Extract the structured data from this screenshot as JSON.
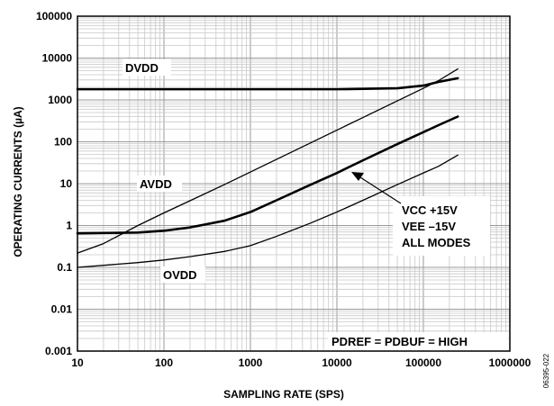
{
  "chart_data": {
    "type": "line",
    "xlabel": "SAMPLING RATE (SPS)",
    "ylabel": "OPERATING CURRENTS (µA)",
    "xscale": "log",
    "yscale": "log",
    "xlim": [
      10,
      1000000
    ],
    "ylim": [
      0.001,
      100000
    ],
    "x_ticks": [
      "10",
      "100",
      "1000",
      "10000",
      "100000",
      "1000000"
    ],
    "y_ticks": [
      "0.001",
      "0.01",
      "0.1",
      "1",
      "10",
      "100",
      "1000",
      "10000",
      "100000"
    ],
    "grid": true,
    "series": [
      {
        "name": "DVDD",
        "stroke": "thick",
        "x": [
          10,
          100,
          1000,
          10000,
          50000,
          100000,
          150000,
          250000
        ],
        "y": [
          1800,
          1800,
          1800,
          1800,
          1900,
          2200,
          2700,
          3300
        ]
      },
      {
        "name": "AVDD",
        "stroke": "thin",
        "x": [
          10,
          20,
          50,
          100,
          200,
          500,
          1000,
          2000,
          5000,
          10000,
          20000,
          50000,
          100000,
          150000,
          250000
        ],
        "y": [
          0.22,
          0.37,
          1.0,
          2.0,
          3.9,
          9.5,
          19,
          38,
          95,
          190,
          380,
          950,
          1900,
          2900,
          5500
        ]
      },
      {
        "name": "",
        "stroke": "thick",
        "x": [
          10,
          50,
          100,
          200,
          500,
          1000,
          2000,
          5000,
          10000,
          20000,
          50000,
          100000,
          150000,
          250000
        ],
        "y": [
          0.65,
          0.68,
          0.75,
          0.9,
          1.3,
          2.1,
          4.0,
          9.5,
          18,
          36,
          88,
          170,
          250,
          400
        ]
      },
      {
        "name": "OVDD",
        "stroke": "thin",
        "x": [
          10,
          50,
          100,
          200,
          500,
          1000,
          2000,
          5000,
          10000,
          20000,
          50000,
          100000,
          150000,
          250000
        ],
        "y": [
          0.1,
          0.13,
          0.15,
          0.18,
          0.24,
          0.33,
          0.55,
          1.15,
          2.1,
          4.0,
          9.5,
          18,
          26,
          48
        ]
      }
    ],
    "annotations": {
      "dvdd": "DVDD",
      "avdd": "AVDD",
      "ovdd": "OVDD",
      "cond_line1": "VCC +15V",
      "cond_line2": "VEE –15V",
      "cond_line3": "ALL MODES",
      "pdref": "PDREF = PDBUF = HIGH"
    },
    "figure_id": "06395-022"
  }
}
